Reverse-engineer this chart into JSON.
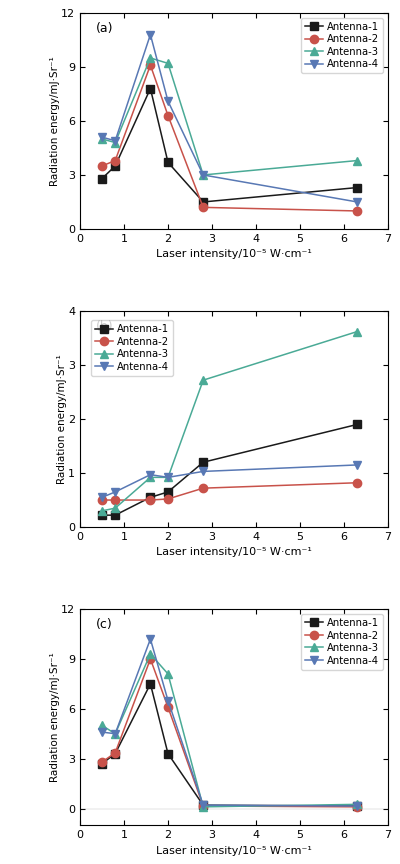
{
  "x_values": [
    0.5,
    0.8,
    1.6,
    2.0,
    2.8,
    6.3
  ],
  "panel_a": {
    "antenna1": [
      2.8,
      3.5,
      7.8,
      3.7,
      1.5,
      2.3
    ],
    "antenna2": [
      3.5,
      3.8,
      9.1,
      6.3,
      1.2,
      1.0
    ],
    "antenna3": [
      5.0,
      4.8,
      9.5,
      9.2,
      3.0,
      3.8
    ],
    "antenna4": [
      5.1,
      4.9,
      10.8,
      7.1,
      3.0,
      1.5
    ]
  },
  "panel_b": {
    "antenna1": [
      0.22,
      0.22,
      0.55,
      0.65,
      1.2,
      1.9
    ],
    "antenna2": [
      0.5,
      0.5,
      0.5,
      0.52,
      0.72,
      0.82
    ],
    "antenna3": [
      0.3,
      0.35,
      0.92,
      0.92,
      2.72,
      3.62
    ],
    "antenna4": [
      0.55,
      0.65,
      0.97,
      0.92,
      1.03,
      1.15
    ]
  },
  "panel_c": {
    "antenna1": [
      2.7,
      3.3,
      7.5,
      3.3,
      0.2,
      0.15
    ],
    "antenna2": [
      2.8,
      3.35,
      9.0,
      6.1,
      0.15,
      0.1
    ],
    "antenna3": [
      5.0,
      4.5,
      9.3,
      8.1,
      0.1,
      0.25
    ],
    "antenna4": [
      4.6,
      4.5,
      10.2,
      6.5,
      0.2,
      0.15
    ]
  },
  "colors": {
    "antenna1": "#1a1a1a",
    "antenna2": "#c8524a",
    "antenna3": "#4aaa96",
    "antenna4": "#5878b4"
  },
  "markers": {
    "antenna1": "s",
    "antenna2": "o",
    "antenna3": "^",
    "antenna4": "v"
  },
  "labels": [
    "Antenna-1",
    "Antenna-2",
    "Antenna-3",
    "Antenna-4"
  ],
  "ylabel": "Radiation energy/mJ·Sr⁻¹",
  "xlabel": "Laser intensity/10⁻⁵ W·cm⁻¹",
  "xlim": [
    0,
    7
  ],
  "xticks": [
    0,
    1,
    2,
    3,
    4,
    5,
    6,
    7
  ],
  "panel_a_ylim": [
    0,
    12
  ],
  "panel_a_yticks": [
    0,
    3,
    6,
    9,
    12
  ],
  "panel_b_ylim": [
    0,
    4
  ],
  "panel_b_yticks": [
    0,
    1,
    2,
    3,
    4
  ],
  "panel_c_ylim": [
    -1,
    12
  ],
  "panel_c_yticks": [
    0,
    3,
    6,
    9,
    12
  ],
  "panel_labels": [
    "(a)",
    "(b)",
    "(c)"
  ],
  "legend_loc": [
    "upper right",
    "upper left",
    "upper right"
  ],
  "markersize": 6,
  "linewidth": 1.1
}
